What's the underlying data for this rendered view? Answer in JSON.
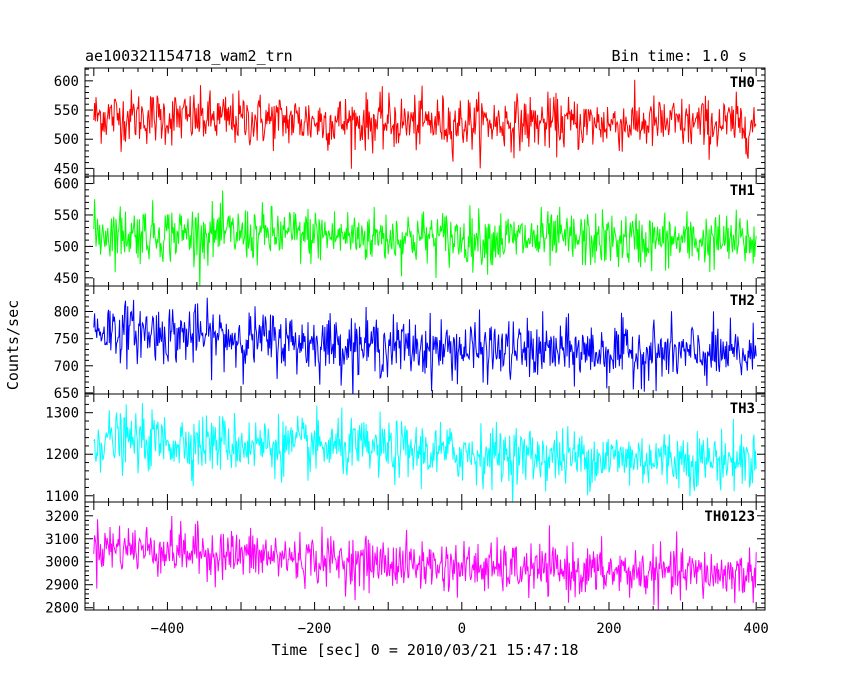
{
  "chart_data": {
    "type": "line",
    "title_left": "ae100321154718_wam2_trn",
    "title_right": "Bin time: 1.0 s",
    "xlabel": "Time [sec] 0 = 2010/03/21 15:47:18",
    "ylabel": "Counts/sec",
    "xlim": [
      -512,
      412
    ],
    "xticks": [
      -400,
      -200,
      0,
      200,
      400
    ],
    "xtick_labels": [
      "−400",
      "−200",
      "0",
      "200",
      "400"
    ],
    "x_range": [
      -500,
      400
    ],
    "bin_time": 1.0,
    "series": [
      {
        "name": "TH0",
        "color": "#ff0000",
        "ylim": [
          437,
          622
        ],
        "yticks": [
          450,
          500,
          550,
          600
        ],
        "ytick_labels": [
          "450",
          "500",
          "550",
          "600"
        ],
        "mean_trend": [
          [
            -500,
            540
          ],
          [
            -350,
            535
          ],
          [
            -100,
            528
          ],
          [
            100,
            528
          ],
          [
            400,
            525
          ]
        ],
        "noise": 23
      },
      {
        "name": "TH1",
        "color": "#00ff00",
        "ylim": [
          437,
          612
        ],
        "yticks": [
          450,
          500,
          550,
          600
        ],
        "ytick_labels": [
          "450",
          "500",
          "550",
          "600"
        ],
        "mean_trend": [
          [
            -500,
            522
          ],
          [
            -200,
            518
          ],
          [
            0,
            513
          ],
          [
            200,
            510
          ],
          [
            400,
            508
          ]
        ],
        "noise": 22
      },
      {
        "name": "TH2",
        "color": "#0000ff",
        "ylim": [
          648,
          847
        ],
        "yticks": [
          650,
          700,
          750,
          800
        ],
        "ytick_labels": [
          "650",
          "700",
          "750",
          "800"
        ],
        "mean_trend": [
          [
            -500,
            768
          ],
          [
            -350,
            755
          ],
          [
            -200,
            742
          ],
          [
            0,
            730
          ],
          [
            200,
            725
          ],
          [
            400,
            718
          ]
        ],
        "noise": 27
      },
      {
        "name": "TH3",
        "color": "#00ffff",
        "ylim": [
          1085,
          1345
        ],
        "yticks": [
          1100,
          1200,
          1300
        ],
        "ytick_labels": [
          "1100",
          "1200",
          "1300"
        ],
        "mean_trend": [
          [
            -500,
            1235
          ],
          [
            -300,
            1225
          ],
          [
            -100,
            1210
          ],
          [
            100,
            1195
          ],
          [
            400,
            1185
          ]
        ],
        "noise": 35
      },
      {
        "name": "TH0123",
        "color": "#ff00ff",
        "ylim": [
          2790,
          3260
        ],
        "yticks": [
          2800,
          2900,
          3000,
          3100,
          3200
        ],
        "ytick_labels": [
          "2800",
          "2900",
          "3000",
          "3100",
          "3200"
        ],
        "mean_trend": [
          [
            -500,
            3070
          ],
          [
            -350,
            3040
          ],
          [
            -150,
            3000
          ],
          [
            50,
            2970
          ],
          [
            200,
            2955
          ],
          [
            400,
            2945
          ]
        ],
        "noise": 55
      }
    ]
  }
}
